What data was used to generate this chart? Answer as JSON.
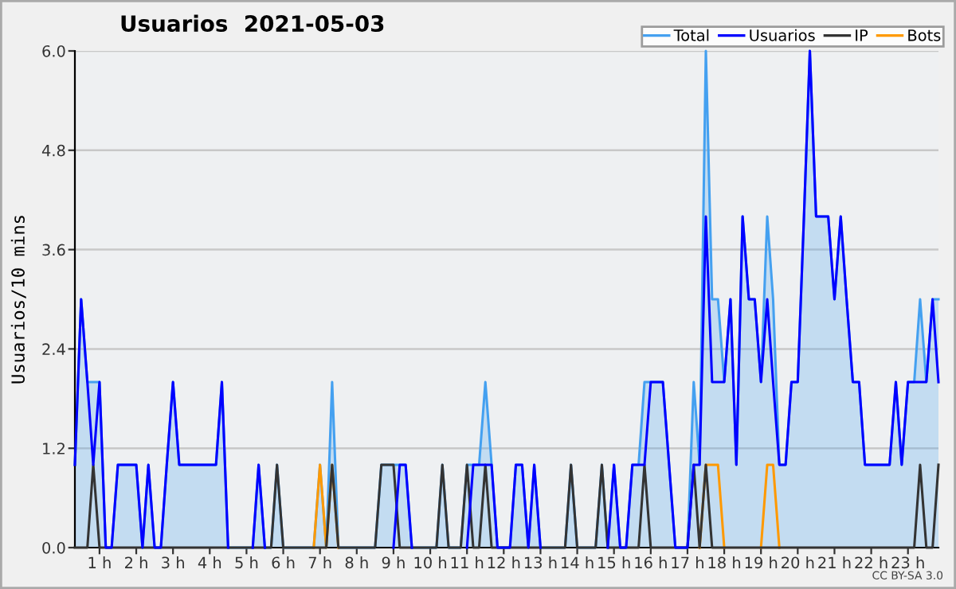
{
  "chart_data": {
    "type": "line",
    "title": "Usuarios  2021-05-03",
    "ylabel": "Usuarios/10 mins",
    "annotations": [
      "CC BY-SA 3.0"
    ],
    "x": [
      0.33,
      0.5,
      0.67,
      0.83,
      1,
      1.17,
      1.33,
      1.5,
      1.67,
      1.83,
      2,
      2.17,
      2.33,
      2.5,
      2.67,
      2.83,
      3,
      3.17,
      3.33,
      3.5,
      3.67,
      3.83,
      4,
      4.17,
      4.33,
      4.5,
      4.67,
      4.83,
      5,
      5.17,
      5.33,
      5.5,
      5.67,
      5.83,
      6,
      6.17,
      6.33,
      6.5,
      6.67,
      6.83,
      7,
      7.17,
      7.33,
      7.5,
      7.67,
      7.83,
      8,
      8.17,
      8.33,
      8.5,
      8.67,
      8.83,
      9,
      9.17,
      9.33,
      9.5,
      9.67,
      9.83,
      10,
      10.17,
      10.33,
      10.5,
      10.67,
      10.83,
      11,
      11.17,
      11.33,
      11.5,
      11.67,
      11.83,
      12,
      12.17,
      12.33,
      12.5,
      12.67,
      12.83,
      13,
      13.17,
      13.33,
      13.5,
      13.67,
      13.83,
      14,
      14.17,
      14.33,
      14.5,
      14.67,
      14.83,
      15,
      15.17,
      15.33,
      15.5,
      15.67,
      15.83,
      16,
      16.17,
      16.33,
      16.5,
      16.67,
      16.83,
      17,
      17.17,
      17.33,
      17.5,
      17.67,
      17.83,
      18,
      18.17,
      18.33,
      18.5,
      18.67,
      18.83,
      19,
      19.17,
      19.33,
      19.5,
      19.67,
      19.83,
      20,
      20.17,
      20.33,
      20.5,
      20.67,
      20.83,
      21,
      21.17,
      21.33,
      21.5,
      21.67,
      21.83,
      22,
      22.17,
      22.33,
      22.5,
      22.67,
      22.83,
      23,
      23.17,
      23.33,
      23.5,
      23.67,
      23.83
    ],
    "series": [
      {
        "name": "Total",
        "type": "area",
        "color": "#44a0f0",
        "values": [
          1,
          3,
          2,
          2,
          2,
          0,
          0,
          1,
          1,
          1,
          1,
          0,
          1,
          0,
          0,
          1,
          2,
          1,
          1,
          1,
          1,
          1,
          1,
          1,
          2,
          0,
          0,
          0,
          0,
          0,
          1,
          0,
          0,
          1,
          0,
          0,
          0,
          0,
          0,
          0,
          1,
          0,
          2,
          0,
          0,
          0,
          0,
          0,
          0,
          0,
          1,
          1,
          1,
          1,
          1,
          0,
          0,
          0,
          0,
          0,
          1,
          0,
          0,
          0,
          1,
          1,
          1,
          2,
          1,
          0,
          0,
          0,
          1,
          1,
          0,
          1,
          0,
          0,
          0,
          0,
          0,
          1,
          0,
          0,
          0,
          0,
          1,
          0,
          1,
          0,
          0,
          1,
          1,
          2,
          2,
          2,
          2,
          1,
          0,
          0,
          0,
          2,
          1,
          6,
          3,
          3,
          2,
          3,
          1,
          4,
          3,
          3,
          2,
          4,
          3,
          1,
          1,
          2,
          2,
          4,
          6,
          4,
          4,
          4,
          3,
          4,
          3,
          2,
          2,
          1,
          1,
          1,
          1,
          1,
          2,
          1,
          2,
          2,
          3,
          2,
          3,
          3
        ]
      },
      {
        "name": "Usuarios",
        "color": "#0000ff",
        "values": [
          1,
          3,
          2,
          1,
          2,
          0,
          0,
          1,
          1,
          1,
          1,
          0,
          1,
          0,
          0,
          1,
          2,
          1,
          1,
          1,
          1,
          1,
          1,
          1,
          2,
          0,
          null,
          null,
          null,
          0,
          1,
          0,
          null,
          null,
          null,
          null,
          null,
          null,
          null,
          null,
          null,
          null,
          null,
          null,
          null,
          null,
          null,
          null,
          null,
          null,
          null,
          null,
          0,
          1,
          1,
          0,
          null,
          null,
          null,
          null,
          null,
          null,
          null,
          null,
          0,
          1,
          1,
          1,
          1,
          0,
          0,
          0,
          1,
          1,
          0,
          1,
          0,
          null,
          null,
          null,
          null,
          null,
          null,
          null,
          null,
          null,
          null,
          0,
          1,
          0,
          0,
          1,
          1,
          1,
          2,
          2,
          2,
          1,
          0,
          0,
          0,
          1,
          1,
          4,
          2,
          2,
          2,
          3,
          1,
          4,
          3,
          3,
          2,
          3,
          2,
          1,
          1,
          2,
          2,
          4,
          6,
          4,
          4,
          4,
          3,
          4,
          3,
          2,
          2,
          1,
          1,
          1,
          1,
          1,
          2,
          1,
          2,
          2,
          2,
          2,
          3,
          2
        ]
      },
      {
        "name": "IP",
        "color": "#333333",
        "values": [
          0,
          0,
          0,
          1,
          0,
          0,
          0,
          0,
          0,
          0,
          0,
          0,
          0,
          0,
          0,
          0,
          0,
          0,
          0,
          0,
          0,
          0,
          0,
          0,
          0,
          0,
          0,
          0,
          0,
          0,
          0,
          0,
          0,
          1,
          0,
          0,
          0,
          0,
          0,
          0,
          0,
          0,
          1,
          0,
          0,
          0,
          0,
          0,
          0,
          0,
          1,
          1,
          1,
          0,
          0,
          0,
          0,
          0,
          0,
          0,
          1,
          0,
          0,
          0,
          1,
          0,
          0,
          1,
          0,
          0,
          0,
          0,
          0,
          0,
          0,
          0,
          0,
          0,
          0,
          0,
          0,
          1,
          0,
          0,
          0,
          0,
          1,
          0,
          0,
          0,
          0,
          0,
          0,
          1,
          0,
          0,
          0,
          0,
          0,
          0,
          0,
          1,
          0,
          1,
          0,
          0,
          0,
          0,
          0,
          0,
          0,
          0,
          0,
          0,
          0,
          0,
          0,
          0,
          0,
          0,
          0,
          0,
          0,
          0,
          0,
          0,
          0,
          0,
          0,
          0,
          0,
          0,
          0,
          0,
          0,
          0,
          0,
          0,
          1,
          0,
          0,
          1
        ]
      },
      {
        "name": "Bots",
        "color": "#ff9900",
        "values": [
          null,
          null,
          null,
          null,
          null,
          null,
          null,
          null,
          null,
          null,
          null,
          null,
          null,
          null,
          null,
          null,
          null,
          null,
          null,
          null,
          null,
          null,
          null,
          null,
          null,
          null,
          null,
          null,
          null,
          null,
          null,
          null,
          null,
          null,
          null,
          null,
          null,
          null,
          null,
          0,
          1,
          0,
          1,
          0,
          null,
          null,
          null,
          null,
          null,
          null,
          null,
          null,
          null,
          null,
          null,
          null,
          null,
          null,
          null,
          null,
          null,
          null,
          null,
          null,
          null,
          null,
          null,
          null,
          null,
          null,
          null,
          null,
          null,
          null,
          null,
          null,
          null,
          null,
          null,
          null,
          null,
          null,
          null,
          null,
          null,
          null,
          null,
          null,
          null,
          null,
          null,
          null,
          null,
          null,
          null,
          null,
          null,
          null,
          null,
          null,
          null,
          null,
          0,
          1,
          1,
          1,
          0,
          null,
          null,
          null,
          null,
          null,
          0,
          1,
          1,
          0,
          null,
          null,
          null,
          null,
          null,
          null,
          null,
          null,
          null,
          null,
          null,
          null,
          null,
          null,
          null,
          null,
          null,
          null,
          null,
          null,
          null,
          null,
          null,
          null,
          null,
          null
        ]
      }
    ],
    "xlim": [
      0.33,
      23.83
    ],
    "xticks": [
      {
        "value": 1,
        "label": "1 h"
      },
      {
        "value": 2,
        "label": "2 h"
      },
      {
        "value": 3,
        "label": "3 h"
      },
      {
        "value": 4,
        "label": "4 h"
      },
      {
        "value": 5,
        "label": "5 h"
      },
      {
        "value": 6,
        "label": "6 h"
      },
      {
        "value": 7,
        "label": "7 h"
      },
      {
        "value": 8,
        "label": "8 h"
      },
      {
        "value": 9,
        "label": "9 h"
      },
      {
        "value": 10,
        "label": "10 h"
      },
      {
        "value": 11,
        "label": "11 h"
      },
      {
        "value": 12,
        "label": "12 h"
      },
      {
        "value": 13,
        "label": "13 h"
      },
      {
        "value": 14,
        "label": "14 h"
      },
      {
        "value": 15,
        "label": "15 h"
      },
      {
        "value": 16,
        "label": "16 h"
      },
      {
        "value": 17,
        "label": "17 h"
      },
      {
        "value": 18,
        "label": "18 h"
      },
      {
        "value": 19,
        "label": "19 h"
      },
      {
        "value": 20,
        "label": "20 h"
      },
      {
        "value": 21,
        "label": "21 h"
      },
      {
        "value": 22,
        "label": "22 h"
      },
      {
        "value": 23,
        "label": "23 h"
      }
    ],
    "ylim": [
      0,
      6
    ],
    "yticks": [
      {
        "value": 0,
        "label": "0.0"
      },
      {
        "value": 1.2,
        "label": "1.2"
      },
      {
        "value": 2.4,
        "label": "2.4"
      },
      {
        "value": 3.6,
        "label": "3.6"
      },
      {
        "value": 4.8,
        "label": "4.8"
      },
      {
        "value": 6,
        "label": "6.0"
      }
    ],
    "grid": "y",
    "legend": "top right"
  }
}
